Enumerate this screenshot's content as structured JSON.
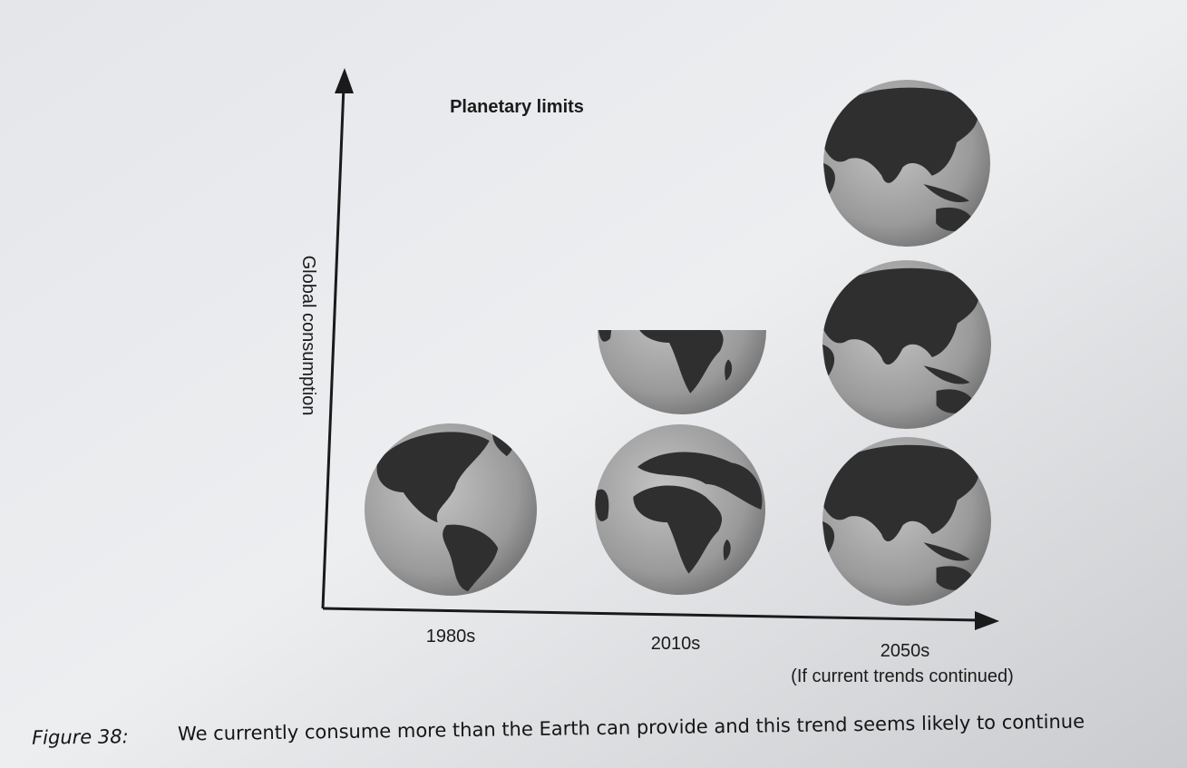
{
  "figure": {
    "title": "Planetary limits",
    "y_axis_label": "Global consumption",
    "x_labels": [
      "1980s",
      "2010s",
      "2050s"
    ],
    "note": "(If current trends continued)",
    "caption": {
      "label": "Figure 38:",
      "text": "We currently consume more than the Earth can provide and this trend seems likely to continue"
    }
  }
}
